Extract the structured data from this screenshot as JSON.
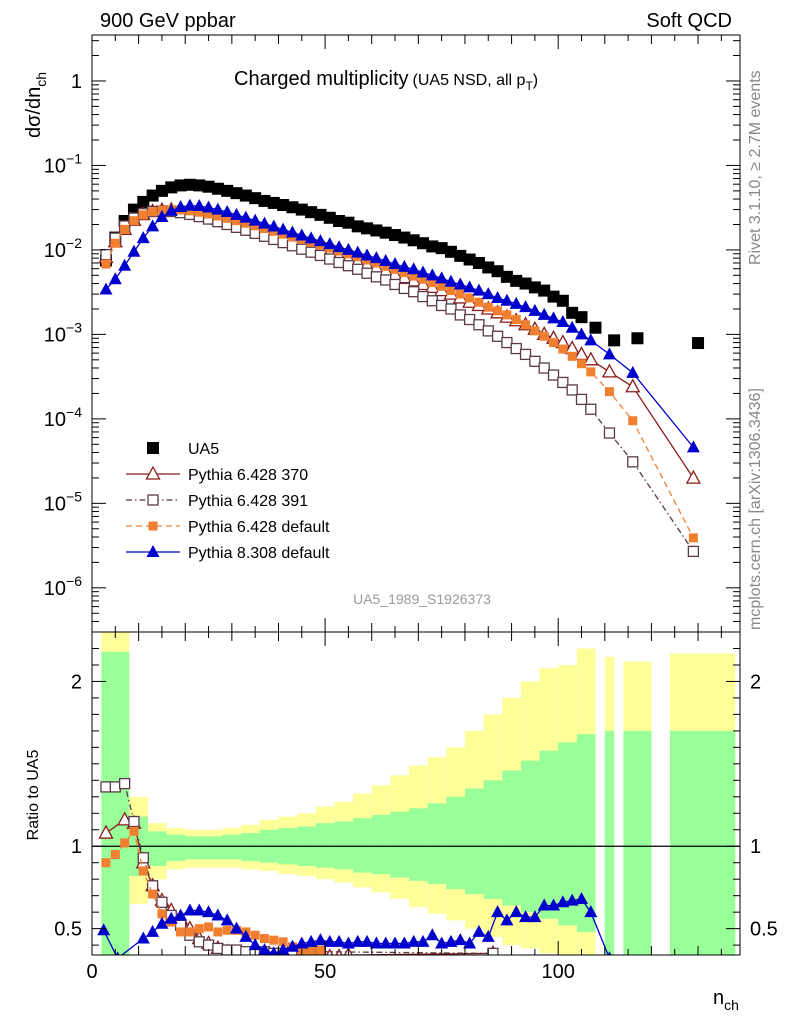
{
  "header": {
    "left": "900 GeV ppbar",
    "right": "Soft QCD"
  },
  "side_labels": {
    "right_top": "Rivet 3.1.10, ≥ 2.7M events",
    "right_bottom": "mcplots.cern.ch [arXiv:1306.3436]"
  },
  "main": {
    "title": "Charged multiplicity",
    "title_sub": "(UA5 NSD, all p",
    "title_sub_T": "T",
    "title_sub_end": ")",
    "ylabel": "dσ/dn",
    "ylabel_sub": "ch",
    "watermark": "UA5_1989_S1926373",
    "ylog": true,
    "ylim": [
      3e-07,
      3.5
    ],
    "yticks": [
      {
        "v": 1,
        "label": "1",
        "sup": ""
      },
      {
        "v": 0.1,
        "label": "10",
        "sup": "−1"
      },
      {
        "v": 0.01,
        "label": "10",
        "sup": "−2"
      },
      {
        "v": 0.001,
        "label": "10",
        "sup": "−3"
      },
      {
        "v": 0.0001,
        "label": "10",
        "sup": "−4"
      },
      {
        "v": 1e-05,
        "label": "10",
        "sup": "−5"
      },
      {
        "v": 1e-06,
        "label": "10",
        "sup": "−6"
      }
    ]
  },
  "ratio": {
    "ylabel": "Ratio to UA5",
    "ylim": [
      0.34,
      2.3
    ],
    "yticks": [
      {
        "v": 0.5,
        "label": "0.5"
      },
      {
        "v": 1,
        "label": "1"
      },
      {
        "v": 2,
        "label": "2"
      }
    ]
  },
  "xaxis": {
    "xlabel": "n",
    "xlabel_sub": "ch",
    "xlim": [
      0,
      139
    ],
    "xticks": [
      {
        "v": 0,
        "label": "0"
      },
      {
        "v": 50,
        "label": "50"
      },
      {
        "v": 100,
        "label": "100"
      }
    ]
  },
  "legend": [
    {
      "label": "UA5",
      "color": "#000000",
      "marker": "square",
      "dash": "none"
    },
    {
      "label": "Pythia 6.428 370",
      "color": "#8b1a1a",
      "marker": "open-triangle",
      "dash": "solid"
    },
    {
      "label": "Pythia 6.428 391",
      "color": "#5a3a4a",
      "marker": "open-square",
      "dash": "dashdot"
    },
    {
      "label": "Pythia 6.428 default",
      "color": "#f07f30",
      "marker": "small-square",
      "dash": "dashed"
    },
    {
      "label": "Pythia 8.308 default",
      "color": "#0000cc",
      "marker": "triangle",
      "dash": "solid"
    }
  ],
  "chart_data": {
    "type": "scatter",
    "ylog": true,
    "series": [
      {
        "name": "UA5",
        "x": [
          3,
          5,
          7,
          9,
          11,
          13,
          15,
          17,
          19,
          21,
          23,
          25,
          27,
          29,
          31,
          33,
          35,
          37,
          39,
          41,
          43,
          45,
          47,
          49,
          51,
          53,
          55,
          57,
          59,
          61,
          63,
          65,
          67,
          69,
          71,
          73,
          75,
          77,
          79,
          81,
          83,
          85,
          87,
          89,
          91,
          93,
          95,
          97,
          99,
          101,
          103,
          105,
          108,
          112,
          117,
          130
        ],
        "y": [
          0.0075,
          0.014,
          0.022,
          0.03,
          0.037,
          0.044,
          0.05,
          0.055,
          0.058,
          0.059,
          0.058,
          0.056,
          0.053,
          0.05,
          0.047,
          0.044,
          0.041,
          0.038,
          0.036,
          0.034,
          0.032,
          0.03,
          0.028,
          0.026,
          0.024,
          0.022,
          0.021,
          0.019,
          0.018,
          0.017,
          0.016,
          0.015,
          0.014,
          0.013,
          0.012,
          0.011,
          0.0105,
          0.0095,
          0.0085,
          0.0077,
          0.007,
          0.0062,
          0.0056,
          0.0048,
          0.0043,
          0.004,
          0.0036,
          0.0033,
          0.0028,
          0.0025,
          0.0018,
          0.0016,
          0.0012,
          0.00085,
          0.0009,
          0.00079
        ]
      },
      {
        "name": "Pythia 6.428 370",
        "x": [
          3,
          5,
          7,
          9,
          11,
          13,
          15,
          17,
          19,
          21,
          23,
          25,
          27,
          29,
          31,
          33,
          35,
          37,
          39,
          41,
          43,
          45,
          47,
          49,
          51,
          53,
          55,
          57,
          59,
          61,
          63,
          65,
          67,
          69,
          71,
          73,
          75,
          77,
          79,
          81,
          83,
          85,
          87,
          89,
          91,
          93,
          95,
          97,
          99,
          101,
          103,
          105,
          107,
          111,
          116,
          129
        ],
        "y": [
          0.0081,
          0.0125,
          0.0175,
          0.0225,
          0.0262,
          0.0285,
          0.0295,
          0.0297,
          0.0291,
          0.028,
          0.0265,
          0.0249,
          0.0232,
          0.0216,
          0.02,
          0.0185,
          0.0171,
          0.0158,
          0.0146,
          0.0135,
          0.0125,
          0.0116,
          0.0107,
          0.0099,
          0.0091,
          0.0084,
          0.0078,
          0.0072,
          0.0066,
          0.0061,
          0.0056,
          0.0051,
          0.0047,
          0.0043,
          0.0039,
          0.0036,
          0.0033,
          0.003,
          0.0027,
          0.0024,
          0.0022,
          0.002,
          0.0018,
          0.0016,
          0.00145,
          0.0013,
          0.00115,
          0.001,
          0.0009,
          0.0008,
          0.00068,
          0.00058,
          0.0005,
          0.00036,
          0.00024,
          1.99e-05
        ]
      },
      {
        "name": "Pythia 6.428 391",
        "x": [
          3,
          5,
          7,
          9,
          11,
          13,
          15,
          17,
          19,
          21,
          23,
          25,
          27,
          29,
          31,
          33,
          35,
          37,
          39,
          41,
          43,
          45,
          47,
          49,
          51,
          53,
          55,
          57,
          59,
          61,
          63,
          65,
          67,
          69,
          71,
          73,
          75,
          77,
          79,
          81,
          83,
          85,
          87,
          89,
          91,
          93,
          95,
          97,
          99,
          101,
          103,
          105,
          107,
          111,
          116,
          129
        ],
        "y": [
          0.0088,
          0.0138,
          0.0192,
          0.0238,
          0.0268,
          0.0285,
          0.0289,
          0.0285,
          0.0276,
          0.0263,
          0.0248,
          0.0232,
          0.0216,
          0.02,
          0.0185,
          0.0171,
          0.0157,
          0.0145,
          0.0133,
          0.0122,
          0.0112,
          0.0102,
          0.0094,
          0.0086,
          0.0078,
          0.0071,
          0.0065,
          0.0059,
          0.0053,
          0.0048,
          0.0044,
          0.0039,
          0.0035,
          0.0032,
          0.0028,
          0.0025,
          0.0022,
          0.002,
          0.0017,
          0.0015,
          0.0013,
          0.0011,
          0.00095,
          0.0008,
          0.00068,
          0.00058,
          0.00048,
          0.0004,
          0.00033,
          0.00027,
          0.00022,
          0.00017,
          0.00013,
          6.8e-05,
          3.1e-05,
          2.7e-06
        ]
      },
      {
        "name": "Pythia 6.428 default",
        "x": [
          3,
          5,
          7,
          9,
          11,
          13,
          15,
          17,
          19,
          21,
          23,
          25,
          27,
          29,
          31,
          33,
          35,
          37,
          39,
          41,
          43,
          45,
          47,
          49,
          51,
          53,
          55,
          57,
          59,
          61,
          63,
          65,
          67,
          69,
          71,
          73,
          75,
          77,
          79,
          81,
          83,
          85,
          87,
          89,
          91,
          93,
          95,
          97,
          99,
          101,
          103,
          105,
          107,
          111,
          116,
          129
        ],
        "y": [
          0.0068,
          0.012,
          0.0175,
          0.0222,
          0.026,
          0.0283,
          0.0295,
          0.0299,
          0.0297,
          0.029,
          0.0279,
          0.0266,
          0.0252,
          0.0237,
          0.0222,
          0.0207,
          0.0193,
          0.0179,
          0.0166,
          0.0154,
          0.0143,
          0.0133,
          0.0123,
          0.0114,
          0.0105,
          0.0097,
          0.009,
          0.0083,
          0.0076,
          0.007,
          0.0064,
          0.0059,
          0.0054,
          0.0049,
          0.0045,
          0.0041,
          0.0037,
          0.0033,
          0.003,
          0.0027,
          0.0024,
          0.0021,
          0.0019,
          0.0017,
          0.0015,
          0.0013,
          0.0011,
          0.00095,
          0.0008,
          0.00067,
          0.00055,
          0.00045,
          0.00036,
          0.00021,
          9.5e-05,
          3.9e-06
        ]
      },
      {
        "name": "Pythia 8.308 default",
        "x": [
          3,
          5,
          7,
          9,
          11,
          13,
          15,
          17,
          19,
          21,
          23,
          25,
          27,
          29,
          31,
          33,
          35,
          37,
          39,
          41,
          43,
          45,
          47,
          49,
          51,
          53,
          55,
          57,
          59,
          61,
          63,
          65,
          67,
          69,
          71,
          73,
          75,
          77,
          79,
          81,
          83,
          85,
          87,
          89,
          91,
          93,
          95,
          97,
          99,
          101,
          103,
          105,
          107,
          111,
          116,
          129
        ],
        "y": [
          0.0034,
          0.0045,
          0.0065,
          0.0095,
          0.0138,
          0.019,
          0.0245,
          0.029,
          0.0322,
          0.0335,
          0.0331,
          0.0318,
          0.03,
          0.0281,
          0.026,
          0.0241,
          0.0222,
          0.0205,
          0.0189,
          0.0174,
          0.0161,
          0.0148,
          0.0137,
          0.0127,
          0.0117,
          0.0108,
          0.01,
          0.0093,
          0.0086,
          0.008,
          0.0074,
          0.0068,
          0.0063,
          0.0059,
          0.0054,
          0.005,
          0.0046,
          0.0042,
          0.0039,
          0.0036,
          0.0033,
          0.003,
          0.0027,
          0.0025,
          0.0023,
          0.0021,
          0.0019,
          0.0017,
          0.00155,
          0.0014,
          0.0012,
          0.001,
          0.00085,
          0.00058,
          0.00035,
          4.6e-05
        ]
      }
    ],
    "ratio_series": [
      {
        "name": "Pythia 6.428 370",
        "x": [
          3,
          7,
          9,
          11,
          13,
          15,
          17,
          19,
          21,
          23,
          25,
          27,
          29,
          31,
          33,
          35,
          37,
          39,
          41,
          43,
          45,
          47,
          49,
          51,
          53,
          55,
          86
        ],
        "y": [
          1.08,
          1.16,
          1.14,
          0.9,
          0.76,
          0.67,
          0.61,
          0.56,
          0.5,
          0.44,
          0.41,
          0.38,
          0.36,
          0.34,
          0.33,
          0.32,
          0.31,
          0.3,
          0.3,
          0.31,
          0.31,
          0.32,
          0.34,
          0.33,
          0.33,
          0.34,
          0.35
        ]
      },
      {
        "name": "Pythia 6.428 391",
        "x": [
          3,
          5,
          7,
          9,
          11,
          13,
          15,
          17,
          19,
          21,
          23,
          25,
          27,
          29,
          31,
          33,
          35,
          37,
          39,
          41,
          43,
          45,
          47,
          49,
          86
        ],
        "y": [
          1.36,
          1.36,
          1.38,
          1.15,
          0.93,
          0.76,
          0.66,
          0.58,
          0.52,
          0.46,
          0.42,
          0.4,
          0.38,
          0.37,
          0.37,
          0.36,
          0.36,
          0.36,
          0.35,
          0.35,
          0.36,
          0.35,
          0.35,
          0.36,
          0.35
        ]
      },
      {
        "name": "Pythia 6.428 default",
        "x": [
          3,
          5,
          7,
          9,
          11,
          13,
          15,
          17,
          19,
          21,
          23,
          25,
          27,
          29,
          31,
          33,
          35,
          37,
          39,
          41,
          43,
          45,
          47,
          49
        ],
        "y": [
          0.9,
          0.95,
          1.02,
          1.09,
          0.85,
          0.71,
          0.59,
          0.54,
          0.48,
          0.48,
          0.5,
          0.51,
          0.48,
          0.49,
          0.49,
          0.48,
          0.46,
          0.44,
          0.43,
          0.42,
          0.39,
          0.37,
          0.37,
          0.37
        ]
      },
      {
        "name": "Pythia 8.308 default",
        "x": [
          2.5,
          5.5,
          11,
          13,
          15,
          17,
          19,
          21,
          23,
          25,
          27,
          29,
          31,
          33,
          35,
          37,
          39,
          41,
          43,
          45,
          47,
          49,
          51,
          53,
          55,
          57,
          59,
          61,
          63,
          65,
          67,
          69,
          71,
          73,
          75,
          77,
          79,
          81,
          83,
          85,
          87,
          89,
          91,
          93,
          95,
          97,
          99,
          101,
          103,
          105,
          107,
          111
        ],
        "y": [
          0.49,
          0.32,
          0.44,
          0.48,
          0.53,
          0.56,
          0.58,
          0.61,
          0.61,
          0.6,
          0.58,
          0.55,
          0.5,
          0.45,
          0.4,
          0.37,
          0.35,
          0.37,
          0.39,
          0.41,
          0.42,
          0.43,
          0.42,
          0.42,
          0.41,
          0.42,
          0.42,
          0.41,
          0.41,
          0.41,
          0.41,
          0.42,
          0.42,
          0.46,
          0.41,
          0.42,
          0.43,
          0.41,
          0.48,
          0.45,
          0.6,
          0.55,
          0.6,
          0.57,
          0.57,
          0.64,
          0.64,
          0.66,
          0.67,
          0.68,
          0.6,
          0.32
        ]
      }
    ],
    "uncertainty_bands": {
      "edges": [
        2,
        4,
        8,
        12,
        16,
        20,
        24,
        28,
        32,
        36,
        40,
        44,
        48,
        52,
        56,
        60,
        64,
        68,
        72,
        76,
        80,
        84,
        88,
        92,
        96,
        100,
        104,
        108,
        110,
        112,
        114,
        120,
        124,
        138
      ],
      "yellow": [
        [
          0.34,
          2.3
        ],
        [
          0.34,
          2.3
        ],
        [
          0.65,
          1.3
        ],
        [
          0.8,
          1.14
        ],
        [
          0.86,
          1.11
        ],
        [
          0.87,
          1.1
        ],
        [
          0.87,
          1.1
        ],
        [
          0.87,
          1.11
        ],
        [
          0.86,
          1.13
        ],
        [
          0.85,
          1.16
        ],
        [
          0.83,
          1.18
        ],
        [
          0.82,
          1.2
        ],
        [
          0.8,
          1.24
        ],
        [
          0.78,
          1.27
        ],
        [
          0.75,
          1.32
        ],
        [
          0.72,
          1.37
        ],
        [
          0.68,
          1.43
        ],
        [
          0.63,
          1.49
        ],
        [
          0.59,
          1.54
        ],
        [
          0.55,
          1.6
        ],
        [
          0.5,
          1.7
        ],
        [
          0.45,
          1.8
        ],
        [
          0.4,
          1.9
        ],
        [
          0.38,
          2.0
        ],
        [
          0.35,
          2.08
        ],
        [
          0.34,
          2.1
        ],
        [
          0.34,
          2.2
        ],
        null,
        [
          0.34,
          2.15
        ],
        null,
        [
          0.34,
          2.12
        ],
        null,
        [
          0.34,
          2.17
        ]
      ],
      "green": [
        [
          0.34,
          2.18
        ],
        [
          0.34,
          2.18
        ],
        [
          0.82,
          1.18
        ],
        [
          0.88,
          1.09
        ],
        [
          0.91,
          1.07
        ],
        [
          0.92,
          1.06
        ],
        [
          0.92,
          1.06
        ],
        [
          0.92,
          1.07
        ],
        [
          0.91,
          1.08
        ],
        [
          0.9,
          1.1
        ],
        [
          0.89,
          1.11
        ],
        [
          0.88,
          1.12
        ],
        [
          0.87,
          1.14
        ],
        [
          0.86,
          1.15
        ],
        [
          0.84,
          1.17
        ],
        [
          0.83,
          1.19
        ],
        [
          0.81,
          1.21
        ],
        [
          0.79,
          1.23
        ],
        [
          0.77,
          1.26
        ],
        [
          0.74,
          1.3
        ],
        [
          0.71,
          1.35
        ],
        [
          0.68,
          1.4
        ],
        [
          0.64,
          1.46
        ],
        [
          0.6,
          1.52
        ],
        [
          0.56,
          1.58
        ],
        [
          0.52,
          1.63
        ],
        [
          0.48,
          1.68
        ],
        null,
        [
          0.34,
          1.7
        ],
        null,
        [
          0.34,
          1.7
        ],
        null,
        [
          0.34,
          1.7
        ]
      ]
    },
    "xlim": [
      0,
      139
    ],
    "xlabel": "n_ch",
    "ylabel": "dσ/dn_ch",
    "legend_placement": "lower-left"
  }
}
